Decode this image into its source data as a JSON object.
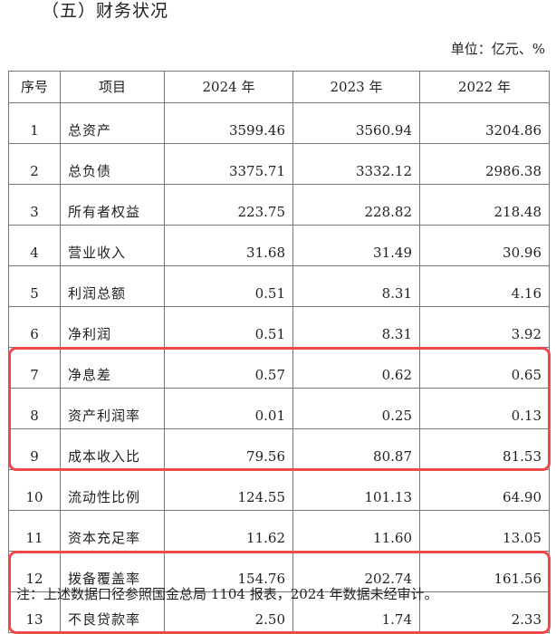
{
  "title": "（五）财务状况",
  "unit": "单位：亿元、%",
  "table": {
    "headers": [
      "序号",
      "项目",
      "2024 年",
      "2023 年",
      "2022 年"
    ],
    "rows": [
      [
        "1",
        "总资产",
        "3599.46",
        "3560.94",
        "3204.86"
      ],
      [
        "2",
        "总负债",
        "3375.71",
        "3332.12",
        "2986.38"
      ],
      [
        "3",
        "所有者权益",
        "223.75",
        "228.82",
        "218.48"
      ],
      [
        "4",
        "营业收入",
        "31.68",
        "31.49",
        "30.96"
      ],
      [
        "5",
        "利润总额",
        "0.51",
        "8.31",
        "4.16"
      ],
      [
        "6",
        "净利润",
        "0.51",
        "8.31",
        "3.92"
      ],
      [
        "7",
        "净息差",
        "0.57",
        "0.62",
        "0.65"
      ],
      [
        "8",
        "资产利润率",
        "0.01",
        "0.25",
        "0.13"
      ],
      [
        "9",
        "成本收入比",
        "79.56",
        "80.87",
        "81.53"
      ],
      [
        "10",
        "流动性比例",
        "124.55",
        "101.13",
        "64.90"
      ],
      [
        "11",
        "资本充足率",
        "11.62",
        "11.60",
        "13.05"
      ],
      [
        "12",
        "拨备覆盖率",
        "154.76",
        "202.74",
        "161.56"
      ],
      [
        "13",
        "不良贷款率",
        "2.50",
        "1.74",
        "2.33"
      ]
    ]
  },
  "highlight_color": "#ef4a4a",
  "note": "注：上述数据口径参照国金总局 1104 报表，2024 年数据未经审计。"
}
